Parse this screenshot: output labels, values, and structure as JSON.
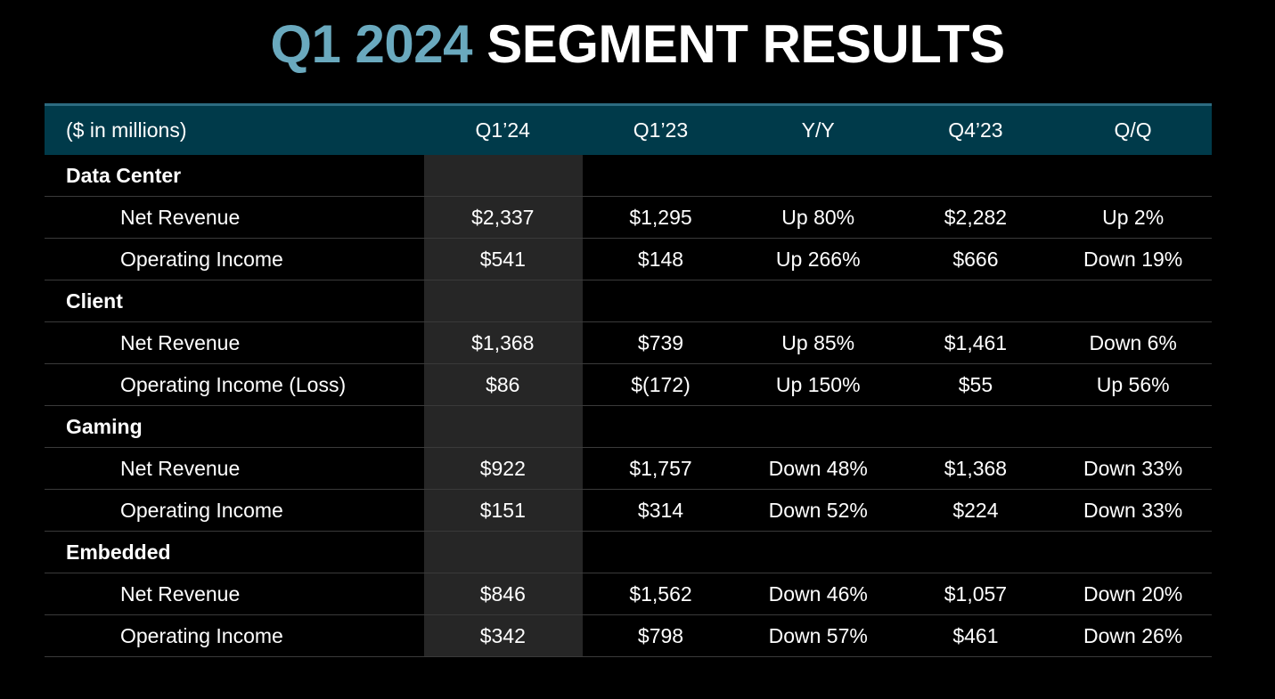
{
  "title": {
    "accent": "Q1 2024",
    "rest": "SEGMENT RESULTS"
  },
  "header": [
    "($ in millions)",
    "Q1’24",
    "Q1’23",
    "Y/Y",
    "Q4’23",
    "Q/Q"
  ],
  "segments": [
    {
      "name": "Data Center",
      "rows": [
        [
          "Net Revenue",
          "$2,337",
          "$1,295",
          "Up 80%",
          "$2,282",
          "Up 2%"
        ],
        [
          "Operating Income",
          "$541",
          "$148",
          "Up 266%",
          "$666",
          "Down 19%"
        ]
      ]
    },
    {
      "name": "Client",
      "rows": [
        [
          "Net Revenue",
          "$1,368",
          "$739",
          "Up 85%",
          "$1,461",
          "Down 6%"
        ],
        [
          "Operating Income (Loss)",
          "$86",
          "$(172)",
          "Up 150%",
          "$55",
          "Up 56%"
        ]
      ]
    },
    {
      "name": "Gaming",
      "rows": [
        [
          "Net Revenue",
          "$922",
          "$1,757",
          "Down 48%",
          "$1,368",
          "Down 33%"
        ],
        [
          "Operating Income",
          "$151",
          "$314",
          "Down 52%",
          "$224",
          "Down 33%"
        ]
      ]
    },
    {
      "name": "Embedded",
      "rows": [
        [
          "Net Revenue",
          "$846",
          "$1,562",
          "Down 46%",
          "$1,057",
          "Down 20%"
        ],
        [
          "Operating Income",
          "$342",
          "$798",
          "Down 57%",
          "$461",
          "Down 26%"
        ]
      ]
    }
  ]
}
